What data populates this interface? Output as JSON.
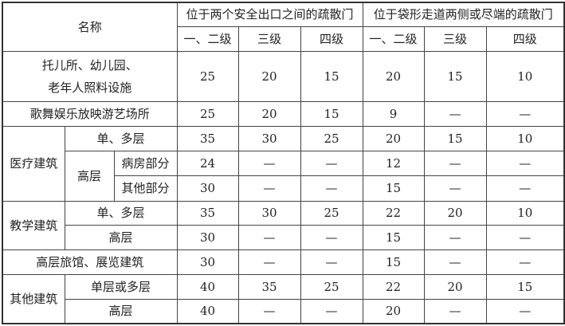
{
  "header": {
    "name_label": "名称",
    "group1": "位于两个安全出口之间的疏散门",
    "group2": "位于袋形走道两侧或尽端的疏散门",
    "grades": [
      "一、二级",
      "三级",
      "四级",
      "一、二级",
      "三级",
      "四级"
    ]
  },
  "rows": {
    "childcare": {
      "label_line1": "托儿所、幼儿园、",
      "label_line2": "老年人照料设施",
      "values": [
        "25",
        "20",
        "15",
        "20",
        "15",
        "10"
      ]
    },
    "entertainment": {
      "label": "歌舞娱乐放映游艺场所",
      "values": [
        "25",
        "20",
        "15",
        "9",
        "—",
        "—"
      ]
    },
    "medical": {
      "label": "医疗建筑",
      "multi": {
        "label": "单、多层",
        "values": [
          "35",
          "30",
          "25",
          "20",
          "15",
          "10"
        ]
      },
      "high_label": "高层",
      "ward": {
        "label": "病房部分",
        "values": [
          "24",
          "—",
          "—",
          "12",
          "—",
          "—"
        ]
      },
      "other": {
        "label": "其他部分",
        "values": [
          "30",
          "—",
          "—",
          "15",
          "—",
          "—"
        ]
      }
    },
    "teaching": {
      "label": "教学建筑",
      "multi": {
        "label": "单、多层",
        "values": [
          "35",
          "30",
          "25",
          "22",
          "20",
          "10"
        ]
      },
      "high": {
        "label": "高层",
        "values": [
          "30",
          "—",
          "—",
          "15",
          "—",
          "—"
        ]
      }
    },
    "hotel": {
      "label": "高层旅馆、展览建筑",
      "values": [
        "30",
        "—",
        "—",
        "15",
        "—",
        "—"
      ]
    },
    "other": {
      "label": "其他建筑",
      "multi": {
        "label": "单层或多层",
        "values": [
          "40",
          "35",
          "25",
          "22",
          "20",
          "15"
        ]
      },
      "high": {
        "label": "高层",
        "values": [
          "40",
          "—",
          "—",
          "20",
          "—",
          "—"
        ]
      }
    }
  }
}
